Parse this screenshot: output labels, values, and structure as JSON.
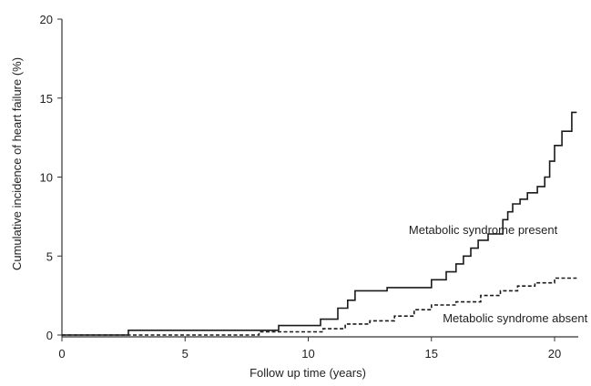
{
  "chart_data": {
    "type": "line",
    "xlabel": "Follow up time (years)",
    "ylabel": "Cumulative incidence of heart failure (%)",
    "xlim": [
      0,
      21
    ],
    "ylim": [
      0,
      20
    ],
    "xticks": [
      "0",
      "5",
      "10",
      "15",
      "20"
    ],
    "yticks": [
      "0",
      "5",
      "10",
      "15",
      "20"
    ],
    "grid": false,
    "legend": "none",
    "step": true,
    "series": [
      {
        "name": "Metabolic syndrome present",
        "style": "solid",
        "color": "#1a1a1a",
        "x": [
          0,
          2.7,
          8.3,
          8.8,
          10.5,
          11.2,
          11.6,
          11.9,
          12.3,
          13.2,
          15.0,
          15.6,
          16.0,
          16.3,
          16.6,
          16.9,
          17.3,
          17.9,
          18.1,
          18.3,
          18.6,
          18.9,
          19.3,
          19.6,
          19.8,
          20.0,
          20.3,
          20.7,
          20.9
        ],
        "y": [
          0,
          0.3,
          0.3,
          0.6,
          1.0,
          1.7,
          2.2,
          2.8,
          2.8,
          3.0,
          3.5,
          4.0,
          4.5,
          5.0,
          5.5,
          6.0,
          6.4,
          7.3,
          7.8,
          8.3,
          8.6,
          9.0,
          9.4,
          10.0,
          11.0,
          12.0,
          12.9,
          14.1,
          14.1
        ]
      },
      {
        "name": "Metabolic syndrome absent",
        "style": "dashed",
        "color": "#1a1a1a",
        "x": [
          0,
          8.0,
          10.6,
          11.5,
          12.5,
          13.5,
          14.3,
          15.0,
          16.0,
          17.0,
          17.8,
          18.5,
          19.2,
          20.0,
          20.9
        ],
        "y": [
          0,
          0.2,
          0.4,
          0.7,
          0.9,
          1.2,
          1.6,
          1.9,
          2.1,
          2.5,
          2.8,
          3.1,
          3.3,
          3.6,
          3.6
        ]
      }
    ],
    "annotations": [
      {
        "text": "Metabolic syndrome present",
        "x": 17.1,
        "y": 6.4
      },
      {
        "text": "Metabolic syndrome absent",
        "x": 18.4,
        "y": 0.8
      }
    ]
  }
}
